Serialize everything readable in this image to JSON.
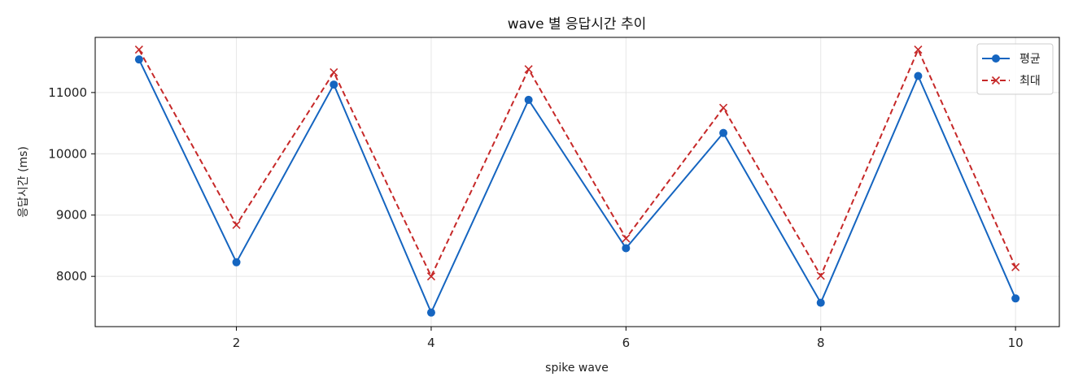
{
  "chart_data": {
    "type": "line",
    "title": "wave 별 응답시간 추이",
    "xlabel": "spike wave",
    "ylabel": "응답시간 (ms)",
    "x": [
      1,
      2,
      3,
      4,
      5,
      6,
      7,
      8,
      9,
      10
    ],
    "xlim": [
      0.55,
      10.45
    ],
    "ylim": [
      7180,
      11900
    ],
    "xticks": [
      2,
      4,
      6,
      8,
      10
    ],
    "yticks": [
      8000,
      9000,
      10000,
      11000
    ],
    "grid": true,
    "legend_position": "top-right",
    "series": [
      {
        "name": "평균",
        "color": "#1565c0",
        "line_style": "solid",
        "marker": "circle",
        "values": [
          11540,
          8230,
          11130,
          7410,
          10880,
          8460,
          10340,
          7570,
          11270,
          7640
        ]
      },
      {
        "name": "최대",
        "color": "#c62828",
        "line_style": "dashed",
        "marker": "x",
        "values": [
          11700,
          8840,
          11330,
          8000,
          11380,
          8620,
          10750,
          8010,
          11700,
          8150
        ]
      }
    ]
  }
}
